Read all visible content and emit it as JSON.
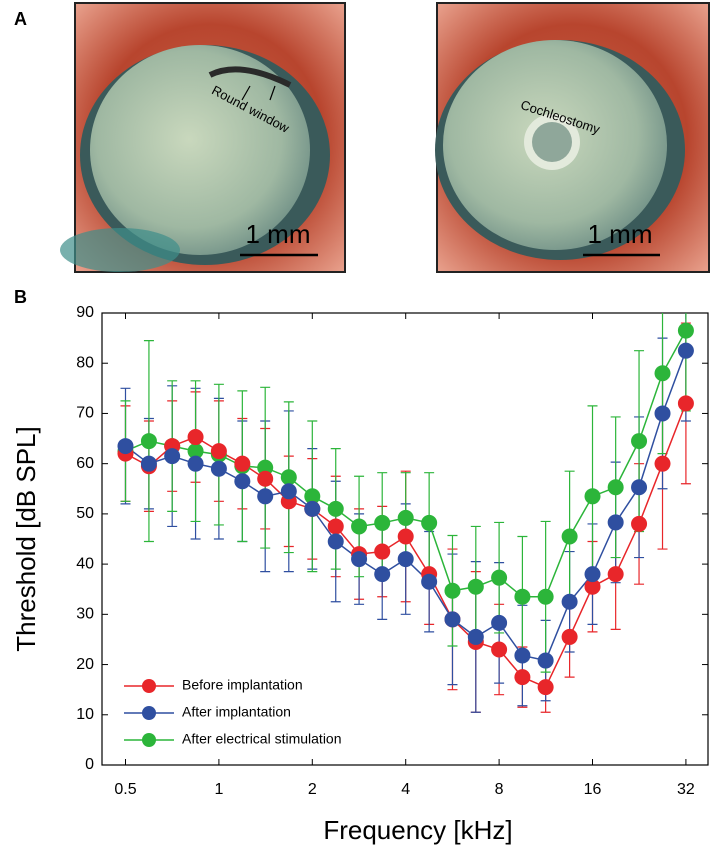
{
  "panel_labels": [
    "A",
    "B"
  ],
  "photos": [
    {
      "annotation": "Round window",
      "scale_bar": "1 mm"
    },
    {
      "annotation": "Cochleostomy",
      "scale_bar": "1 mm"
    }
  ],
  "chart_data": {
    "type": "line",
    "x_label": "Frequency [kHz]",
    "y_label": "Threshold [dB SPL]",
    "xscale": "log",
    "x": [
      0.5,
      0.595,
      0.707,
      0.841,
      1,
      1.19,
      1.41,
      1.68,
      2,
      2.38,
      2.83,
      3.36,
      4,
      4.76,
      5.66,
      6.73,
      8,
      9.51,
      11.3,
      13.5,
      16,
      19,
      22.6,
      26.9,
      32
    ],
    "xlim": [
      0.42,
      37.7
    ],
    "xticks": [
      0.5,
      1,
      2,
      4,
      8,
      16,
      32
    ],
    "ylim": [
      0,
      90
    ],
    "yticks": [
      0,
      10,
      20,
      30,
      40,
      50,
      60,
      70,
      80,
      90
    ],
    "legend": "lower left",
    "series": [
      {
        "name": "Before implantation",
        "color": "#e8262a",
        "values": [
          62,
          59.5,
          63.5,
          65.3,
          62.5,
          60,
          57,
          52.5,
          51,
          47.5,
          42,
          42.5,
          45.5,
          38,
          29,
          24.5,
          23,
          17.5,
          15.5,
          25.5,
          35.5,
          38,
          48,
          60,
          72
        ],
        "errors": [
          9.5,
          9,
          9,
          9,
          10,
          9,
          10,
          9,
          10,
          10,
          9,
          9,
          13,
          10,
          14,
          14,
          9,
          6,
          5,
          8,
          9,
          11,
          12,
          17,
          16
        ]
      },
      {
        "name": "After implantation",
        "color": "#2f4fa0",
        "values": [
          63.5,
          60,
          61.5,
          60,
          59,
          56.5,
          53.5,
          54.5,
          51,
          44.5,
          41,
          38,
          41,
          36.5,
          29,
          25.5,
          28.3,
          21.8,
          20.8,
          32.5,
          38,
          48.3,
          55.3,
          70,
          82.5
        ],
        "errors": [
          11.5,
          9,
          14,
          15,
          14,
          12,
          15,
          16,
          12,
          12,
          9,
          9,
          11,
          10,
          13,
          15,
          12,
          10,
          8,
          10,
          10,
          12,
          14,
          15,
          14
        ]
      },
      {
        "name": "After electrical stimulation",
        "color": "#2cb53a",
        "values": [
          62.5,
          64.5,
          63.5,
          62.5,
          61.8,
          59.5,
          59.2,
          57.3,
          53.5,
          51,
          47.5,
          48.2,
          49.2,
          48.2,
          34.7,
          35.5,
          37.3,
          33.5,
          33.5,
          45.5,
          53.5,
          55.3,
          64.5,
          78,
          86.5
        ],
        "errors": [
          10,
          20,
          13,
          14,
          14,
          15,
          16,
          15,
          15,
          12,
          10,
          10,
          9,
          10,
          11,
          12,
          11,
          12,
          15,
          13,
          18,
          14,
          18,
          16,
          16
        ]
      }
    ]
  }
}
